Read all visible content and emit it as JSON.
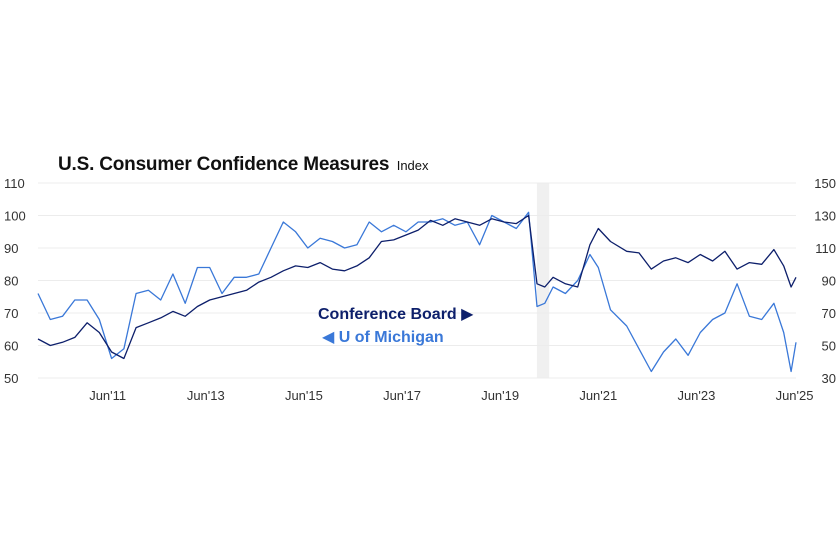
{
  "chart_data": {
    "type": "line",
    "title": "U.S. Consumer Confidence Measures",
    "subtitle": "Index",
    "colors": {
      "conference_board": "#0d1f6b",
      "u_of_michigan": "#3a78d8",
      "grid": "#ececec",
      "shade": "#f0f0f0"
    },
    "x_ticks": [
      "Jun'11",
      "Jun'13",
      "Jun'15",
      "Jun'17",
      "Jun'19",
      "Jun'21",
      "Jun'23",
      "Jun'25"
    ],
    "x_tick_values": [
      2011.42,
      2013.42,
      2015.42,
      2017.42,
      2019.42,
      2021.42,
      2023.42,
      2025.42
    ],
    "xlim": [
      2010.0,
      2025.45
    ],
    "y_left": {
      "ticks": [
        "110",
        "100",
        "90",
        "80",
        "70",
        "60",
        "50"
      ],
      "lim": [
        50,
        110
      ]
    },
    "y_right": {
      "ticks": [
        "150",
        "130",
        "110",
        "90",
        "70",
        "50",
        "30"
      ],
      "lim": [
        30,
        150
      ]
    },
    "grid": true,
    "shaded_period": [
      2020.17,
      2020.42
    ],
    "legend": [
      {
        "label": "Conference Board ▶",
        "axis": "right"
      },
      {
        "label": "◀ U of Michigan",
        "axis": "left"
      }
    ],
    "series": [
      {
        "name": "Conference Board",
        "axis": "right",
        "x": [
          2010.0,
          2010.25,
          2010.5,
          2010.75,
          2011.0,
          2011.25,
          2011.5,
          2011.75,
          2012.0,
          2012.25,
          2012.5,
          2012.75,
          2013.0,
          2013.25,
          2013.5,
          2013.75,
          2014.0,
          2014.25,
          2014.5,
          2014.75,
          2015.0,
          2015.25,
          2015.5,
          2015.75,
          2016.0,
          2016.25,
          2016.5,
          2016.75,
          2017.0,
          2017.25,
          2017.5,
          2017.75,
          2018.0,
          2018.25,
          2018.5,
          2018.75,
          2019.0,
          2019.25,
          2019.5,
          2019.75,
          2020.0,
          2020.17,
          2020.33,
          2020.5,
          2020.75,
          2021.0,
          2021.25,
          2021.42,
          2021.67,
          2022.0,
          2022.25,
          2022.5,
          2022.75,
          2023.0,
          2023.25,
          2023.5,
          2023.75,
          2024.0,
          2024.25,
          2024.5,
          2024.75,
          2025.0,
          2025.2,
          2025.35,
          2025.45
        ],
        "y": [
          54,
          50,
          52,
          55,
          64,
          58,
          46,
          42,
          61,
          64,
          67,
          71,
          68,
          74,
          78,
          80,
          82,
          84,
          89,
          92,
          96,
          99,
          98,
          101,
          97,
          96,
          99,
          104,
          114,
          115,
          118,
          121,
          127,
          124,
          128,
          126,
          124,
          128,
          126,
          125,
          130,
          88,
          86,
          92,
          88,
          86,
          112,
          122,
          114,
          108,
          107,
          97,
          102,
          104,
          101,
          106,
          102,
          108,
          97,
          101,
          100,
          109,
          99,
          86,
          92
        ]
      },
      {
        "name": "U of Michigan",
        "axis": "left",
        "x": [
          2010.0,
          2010.25,
          2010.5,
          2010.75,
          2011.0,
          2011.25,
          2011.5,
          2011.75,
          2012.0,
          2012.25,
          2012.5,
          2012.75,
          2013.0,
          2013.25,
          2013.5,
          2013.75,
          2014.0,
          2014.25,
          2014.5,
          2014.75,
          2015.0,
          2015.25,
          2015.5,
          2015.75,
          2016.0,
          2016.25,
          2016.5,
          2016.75,
          2017.0,
          2017.25,
          2017.5,
          2017.75,
          2018.0,
          2018.25,
          2018.5,
          2018.75,
          2019.0,
          2019.25,
          2019.5,
          2019.75,
          2020.0,
          2020.17,
          2020.33,
          2020.5,
          2020.75,
          2021.0,
          2021.25,
          2021.42,
          2021.67,
          2022.0,
          2022.25,
          2022.5,
          2022.75,
          2023.0,
          2023.25,
          2023.5,
          2023.75,
          2024.0,
          2024.25,
          2024.5,
          2024.75,
          2025.0,
          2025.2,
          2025.35,
          2025.45
        ],
        "y": [
          76,
          68,
          69,
          74,
          74,
          68,
          56,
          59,
          76,
          77,
          74,
          82,
          73,
          84,
          84,
          76,
          81,
          81,
          82,
          90,
          98,
          95,
          90,
          93,
          92,
          90,
          91,
          98,
          95,
          97,
          95,
          98,
          98,
          99,
          97,
          98,
          91,
          100,
          98,
          96,
          101,
          72,
          73,
          78,
          76,
          80,
          88,
          84,
          71,
          66,
          59,
          52,
          58,
          62,
          57,
          64,
          68,
          70,
          79,
          69,
          68,
          73,
          64,
          52,
          61
        ]
      }
    ]
  }
}
